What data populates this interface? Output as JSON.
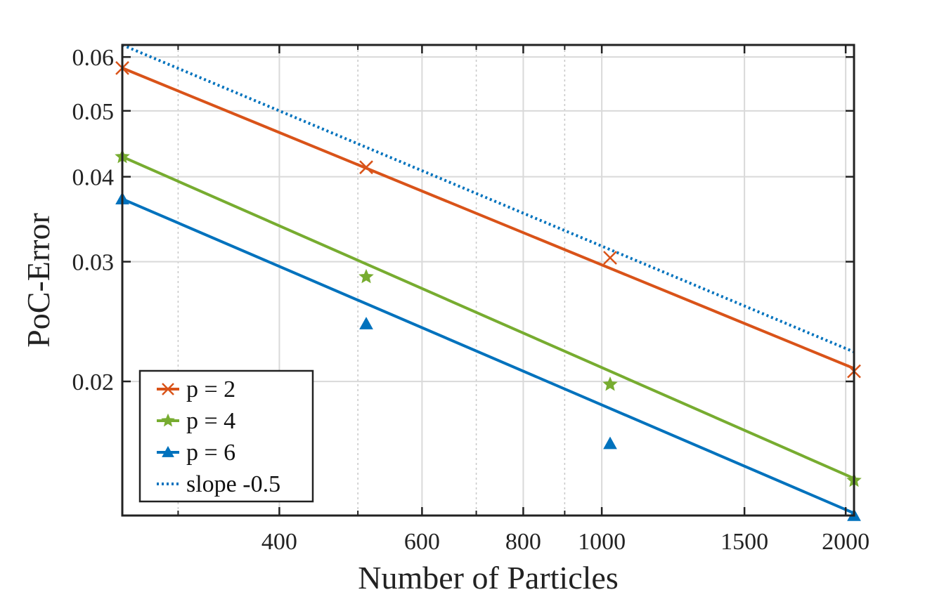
{
  "chart_data": {
    "type": "line",
    "xscale": "log",
    "yscale": "log",
    "xlabel": "Number of Particles",
    "ylabel": "PoC-Error",
    "xlim": [
      256,
      2048
    ],
    "ylim": [
      0.0127,
      0.0625
    ],
    "xticks": [
      {
        "value": 400,
        "label": "400"
      },
      {
        "value": 600,
        "label": "600"
      },
      {
        "value": 800,
        "label": "800"
      },
      {
        "value": 1000,
        "label": "1000"
      },
      {
        "value": 1500,
        "label": "1500"
      },
      {
        "value": 2000,
        "label": "2000"
      }
    ],
    "xminor": [
      300,
      500,
      700,
      900
    ],
    "yticks": [
      {
        "value": 0.02,
        "label": "0.02"
      },
      {
        "value": 0.03,
        "label": "0.03"
      },
      {
        "value": 0.04,
        "label": "0.04"
      },
      {
        "value": 0.05,
        "label": "0.05"
      },
      {
        "value": 0.06,
        "label": "0.06"
      }
    ],
    "grid": true,
    "legend_position": "bottom-left",
    "series": [
      {
        "name": "p = 2",
        "color": "#D95319",
        "marker": "x",
        "points_x": [
          256,
          512,
          1024,
          2048
        ],
        "points_y": [
          0.0578,
          0.0413,
          0.0304,
          0.0207
        ],
        "fit_y": [
          0.0578,
          0.0209
        ]
      },
      {
        "name": "p = 4",
        "color": "#77AC30",
        "marker": "star",
        "points_x": [
          256,
          512,
          1024,
          2048
        ],
        "points_y": [
          0.0428,
          0.0285,
          0.0198,
          0.0143
        ],
        "fit_y": [
          0.0428,
          0.0144
        ]
      },
      {
        "name": "p = 6",
        "color": "#0072BD",
        "marker": "triangle",
        "points_x": [
          256,
          512,
          1024,
          2048
        ],
        "points_y": [
          0.0371,
          0.0243,
          0.0162,
          0.0127
        ],
        "fit_y": [
          0.0371,
          0.0128
        ]
      },
      {
        "name": "slope -0.5",
        "color": "#0072BD",
        "marker": "none",
        "dotted": true,
        "points_x": [],
        "points_y": [],
        "fit_y": [
          0.0625,
          0.0221
        ]
      }
    ]
  }
}
